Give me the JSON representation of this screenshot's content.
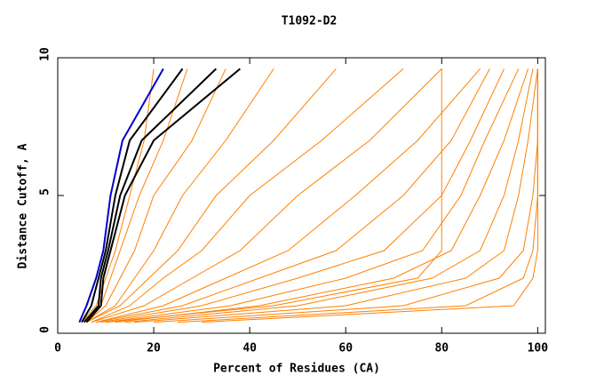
{
  "chart_data": {
    "type": "line",
    "title": "T1092-D2",
    "x_label": "Percent of Residues (CA)",
    "y_label": "Distance Cutoff, A",
    "xlim": [
      0,
      101.6
    ],
    "ylim": [
      0,
      10
    ],
    "xticks": [
      0,
      20,
      40,
      60,
      80,
      100
    ],
    "yticks": [
      0,
      5,
      10
    ],
    "series": [
      {
        "color": "#ff8000",
        "x": [
          5,
          8,
          10,
          12,
          15,
          18,
          20
        ],
        "values": [
          0.4,
          1,
          2,
          3,
          5,
          7,
          9.6
        ]
      },
      {
        "color": "#ff8000",
        "x": [
          5,
          9,
          11,
          13,
          17,
          22,
          27
        ],
        "values": [
          0.4,
          1,
          2,
          3,
          5,
          7,
          9.6
        ]
      },
      {
        "color": "#ff8000",
        "x": [
          6,
          10,
          13,
          16,
          20,
          28,
          35
        ],
        "values": [
          0.4,
          1,
          2,
          3,
          5,
          7,
          9.6
        ]
      },
      {
        "color": "#ff8000",
        "x": [
          6,
          12,
          16,
          20,
          26,
          35,
          45
        ],
        "values": [
          0.4,
          1,
          2,
          3,
          5,
          7,
          9.6
        ]
      },
      {
        "color": "#ff8000",
        "x": [
          6,
          13,
          19,
          25,
          33,
          45,
          58
        ],
        "values": [
          0.4,
          1,
          2,
          3,
          5,
          7,
          9.6
        ]
      },
      {
        "color": "#ff8000",
        "x": [
          7,
          15,
          22,
          30,
          40,
          55,
          72
        ],
        "values": [
          0.4,
          1,
          2,
          3,
          5,
          7,
          9.6
        ]
      },
      {
        "color": "#ff8000",
        "x": [
          7,
          18,
          28,
          38,
          50,
          65,
          80
        ],
        "values": [
          0.4,
          1,
          2,
          3,
          5,
          7,
          9.6
        ]
      },
      {
        "color": "#ff8000",
        "x": [
          8,
          22,
          35,
          48,
          62,
          75,
          88
        ],
        "values": [
          0.4,
          1,
          2,
          3,
          5,
          7,
          9.6
        ]
      },
      {
        "color": "#ff8000",
        "x": [
          8,
          26,
          42,
          58,
          72,
          82,
          90
        ],
        "values": [
          0.4,
          1,
          2,
          3,
          5,
          7,
          9.6
        ]
      },
      {
        "color": "#ff8000",
        "x": [
          9,
          30,
          50,
          68,
          80,
          86,
          93
        ],
        "values": [
          0.4,
          1,
          2,
          3,
          5,
          7,
          9.6
        ]
      },
      {
        "color": "#ff8000",
        "x": [
          10,
          36,
          60,
          76,
          84,
          89,
          96
        ],
        "values": [
          0.4,
          1,
          2,
          3,
          5,
          7,
          9.6
        ]
      },
      {
        "color": "#ff8000",
        "x": [
          12,
          42,
          70,
          82,
          88,
          93,
          98
        ],
        "values": [
          0.4,
          1,
          2,
          3,
          5,
          7,
          9.6
        ]
      },
      {
        "color": "#ff8000",
        "x": [
          14,
          50,
          78,
          88,
          93,
          96,
          99
        ],
        "values": [
          0.4,
          1,
          2,
          3,
          5,
          7,
          9.6
        ]
      },
      {
        "color": "#ff8000",
        "x": [
          16,
          60,
          85,
          93,
          96,
          98,
          100
        ],
        "values": [
          0.4,
          1,
          2,
          3,
          5,
          7,
          9.6
        ]
      },
      {
        "color": "#ff8000",
        "x": [
          20,
          72,
          92,
          97,
          99,
          100,
          100
        ],
        "values": [
          0.4,
          1,
          2,
          3,
          5,
          7,
          9.6
        ]
      },
      {
        "color": "#ff8000",
        "x": [
          25,
          85,
          97,
          99,
          100,
          100,
          100
        ],
        "values": [
          0.4,
          1,
          2,
          3,
          5,
          7,
          9.6
        ]
      },
      {
        "color": "#ff8000",
        "x": [
          30,
          95,
          99,
          100,
          100,
          100,
          100
        ],
        "values": [
          0.4,
          1,
          2,
          3,
          5,
          7,
          9.6
        ]
      },
      {
        "color": "#ff8000",
        "x": [
          10,
          45,
          75,
          80,
          80,
          80,
          80
        ],
        "values": [
          0.4,
          1,
          2,
          3,
          5,
          7,
          9.6
        ]
      },
      {
        "color": "#000000",
        "x": [
          5,
          7,
          8.5,
          10,
          12,
          15,
          26
        ],
        "values": [
          0.4,
          1,
          2,
          3,
          5,
          7,
          9.6
        ]
      },
      {
        "color": "#000000",
        "x": [
          5.5,
          8.5,
          9,
          10.5,
          13,
          17.5,
          33
        ],
        "values": [
          0.4,
          1,
          2,
          3,
          5,
          7,
          9.6
        ]
      },
      {
        "color": "#000000",
        "x": [
          6,
          9,
          9.5,
          11,
          14,
          20,
          38
        ],
        "values": [
          0.4,
          1,
          2,
          3,
          5,
          7,
          9.6
        ]
      },
      {
        "color": "#0000cc",
        "x": [
          4.5,
          6,
          8,
          9.5,
          11,
          13.5,
          22
        ],
        "values": [
          0.4,
          1,
          2,
          3,
          5,
          7,
          9.6
        ]
      }
    ]
  }
}
